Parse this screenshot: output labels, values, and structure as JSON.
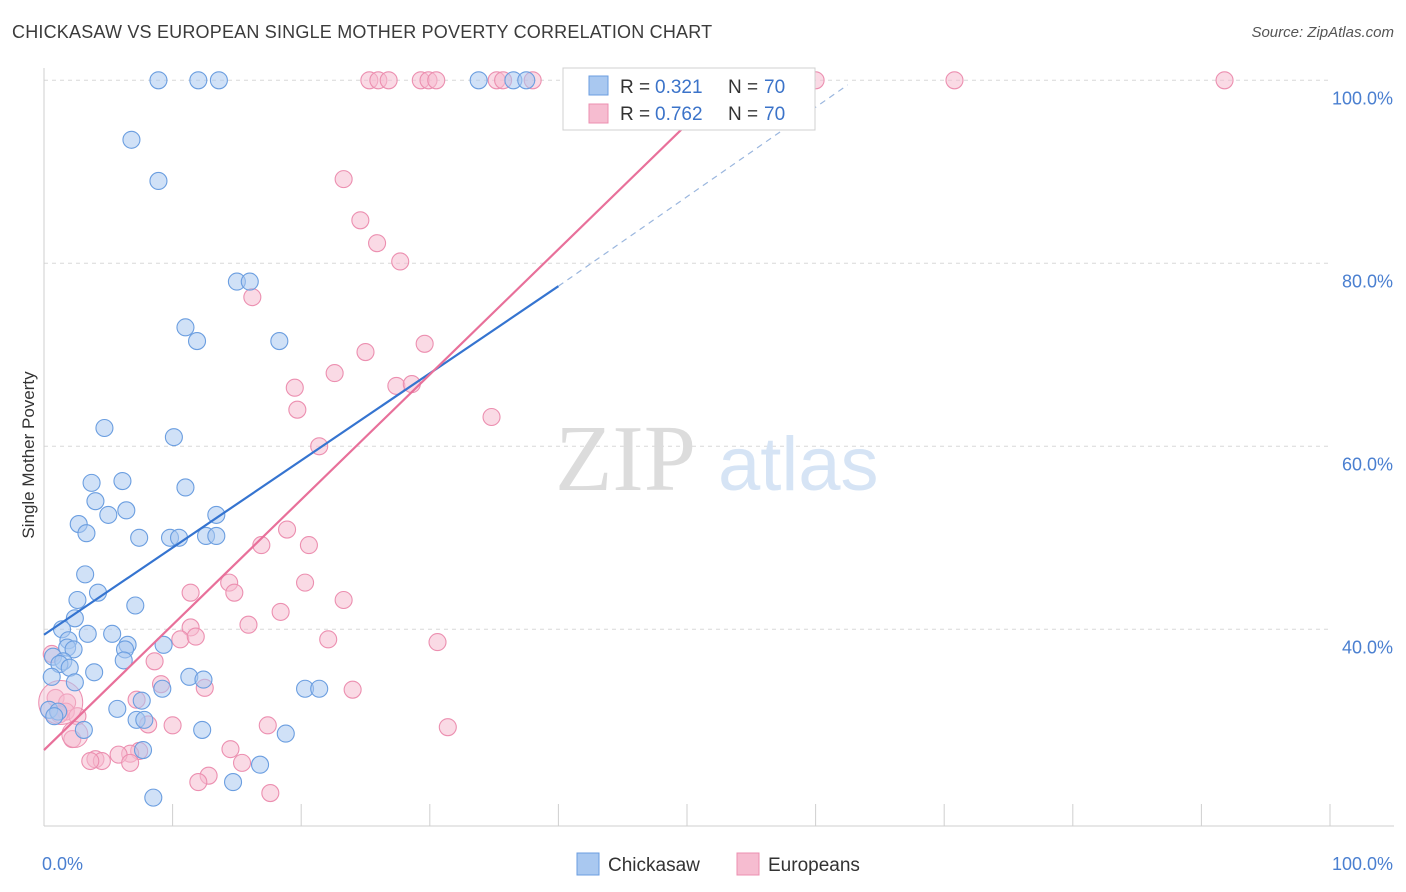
{
  "title": "CHICKASAW VS EUROPEAN SINGLE MOTHER POVERTY CORRELATION CHART",
  "source": "Source: ZipAtlas.com",
  "watermark": {
    "zip": "ZIP",
    "atlas": "atlas"
  },
  "colors": {
    "chickasaw_fill": "#a9c8f0",
    "chickasaw_stroke": "#6b9ee0",
    "chickasaw_line": "#3574d0",
    "europeans_fill": "#f6bcd0",
    "europeans_stroke": "#ec8fb0",
    "europeans_line": "#e8709a",
    "axis_text": "#4a7fd0",
    "grid": "#d8d8d8"
  },
  "legend_box": {
    "rows": [
      {
        "r_label": "R =",
        "r_value": "0.321",
        "n_label": "N =",
        "n_value": "70"
      },
      {
        "r_label": "R =",
        "r_value": "0.762",
        "n_label": "N =",
        "n_value": "70"
      }
    ]
  },
  "chart_data": {
    "type": "scatter",
    "title": "CHICKASAW VS EUROPEAN SINGLE MOTHER POVERTY CORRELATION CHART",
    "xlabel": "",
    "ylabel": "Single Mother Poverty",
    "xlim": [
      0,
      100
    ],
    "ylim": [
      18.5,
      102
    ],
    "x_tick_labels": [
      {
        "value": 0,
        "label": "0.0%"
      },
      {
        "value": 100,
        "label": "100.0%"
      }
    ],
    "y_tick_labels": [
      {
        "value": 40,
        "label": "40.0%"
      },
      {
        "value": 60,
        "label": "60.0%"
      },
      {
        "value": 80,
        "label": "80.0%"
      },
      {
        "value": 100,
        "label": "100.0%"
      }
    ],
    "y_gridlines": [
      40,
      60,
      80,
      100
    ],
    "legend_position": "bottom-center",
    "series": [
      {
        "name": "Chickasaw",
        "R": 0.321,
        "N": 70,
        "trend": {
          "x0": 0,
          "y0": 39.4,
          "x1": 40,
          "y1": 77.5,
          "dash_to": [
            62.5,
            99.5
          ]
        },
        "points": [
          [
            8.9,
            100
          ],
          [
            12,
            100
          ],
          [
            13.6,
            100
          ],
          [
            33.8,
            100
          ],
          [
            36.5,
            100
          ],
          [
            37.5,
            100
          ],
          [
            6.8,
            93.5
          ],
          [
            8.9,
            89
          ],
          [
            15,
            78
          ],
          [
            16,
            78
          ],
          [
            11,
            73
          ],
          [
            11.9,
            71.5
          ],
          [
            18.3,
            71.5
          ],
          [
            4.7,
            62
          ],
          [
            10.1,
            61
          ],
          [
            3.7,
            56
          ],
          [
            6.1,
            56.2
          ],
          [
            11,
            55.5
          ],
          [
            4,
            54
          ],
          [
            6.4,
            53
          ],
          [
            5,
            52.5
          ],
          [
            13.4,
            52.5
          ],
          [
            2.7,
            51.5
          ],
          [
            3.3,
            50.5
          ],
          [
            7.4,
            50
          ],
          [
            9.8,
            50
          ],
          [
            10.5,
            50
          ],
          [
            12.6,
            50.2
          ],
          [
            13.4,
            50.2
          ],
          [
            3.2,
            46
          ],
          [
            4.2,
            44
          ],
          [
            2.6,
            43.2
          ],
          [
            7.1,
            42.6
          ],
          [
            2.4,
            41.2
          ],
          [
            1.4,
            40
          ],
          [
            3.4,
            39.5
          ],
          [
            5.3,
            39.5
          ],
          [
            1.9,
            38.8
          ],
          [
            6.5,
            38.3
          ],
          [
            9.3,
            38.3
          ],
          [
            1.8,
            38
          ],
          [
            6.3,
            37.8
          ],
          [
            2.3,
            37.8
          ],
          [
            0.7,
            37
          ],
          [
            1.5,
            36.5
          ],
          [
            1.2,
            36.2
          ],
          [
            6.2,
            36.6
          ],
          [
            2,
            35.8
          ],
          [
            3.9,
            35.3
          ],
          [
            11.3,
            34.8
          ],
          [
            12.4,
            34.5
          ],
          [
            0.6,
            34.8
          ],
          [
            2.4,
            34.2
          ],
          [
            9.2,
            33.5
          ],
          [
            20.3,
            33.5
          ],
          [
            21.4,
            33.5
          ],
          [
            0.4,
            31.2
          ],
          [
            1.1,
            31
          ],
          [
            5.7,
            31.3
          ],
          [
            7.6,
            32.2
          ],
          [
            0.8,
            30.5
          ],
          [
            7.2,
            30.1
          ],
          [
            7.8,
            30.1
          ],
          [
            3.1,
            29
          ],
          [
            12.3,
            29
          ],
          [
            18.8,
            28.6
          ],
          [
            7.7,
            26.8
          ],
          [
            16.8,
            25.2
          ],
          [
            14.7,
            23.3
          ],
          [
            8.5,
            21.6
          ]
        ]
      },
      {
        "name": "Europeans",
        "R": 0.762,
        "N": 70,
        "trend": {
          "x0": 0,
          "y0": 26.8,
          "x1": 53.5,
          "y1": 100
        },
        "points": [
          [
            25.3,
            100
          ],
          [
            26,
            100
          ],
          [
            26.8,
            100
          ],
          [
            29.3,
            100
          ],
          [
            29.9,
            100
          ],
          [
            30.5,
            100
          ],
          [
            35.2,
            100
          ],
          [
            35.7,
            100
          ],
          [
            38,
            100
          ],
          [
            42.6,
            100
          ],
          [
            60,
            100
          ],
          [
            70.8,
            100
          ],
          [
            91.8,
            100
          ],
          [
            23.3,
            89.2
          ],
          [
            24.6,
            84.7
          ],
          [
            25.9,
            82.2
          ],
          [
            27.7,
            80.2
          ],
          [
            16.2,
            76.3
          ],
          [
            29.6,
            71.2
          ],
          [
            25,
            70.3
          ],
          [
            22.6,
            68
          ],
          [
            27.4,
            66.6
          ],
          [
            28.6,
            66.8
          ],
          [
            19.5,
            66.4
          ],
          [
            19.7,
            64
          ],
          [
            34.8,
            63.2
          ],
          [
            21.4,
            60
          ],
          [
            18.9,
            50.9
          ],
          [
            16.9,
            49.2
          ],
          [
            20.6,
            49.2
          ],
          [
            14.4,
            45.1
          ],
          [
            20.3,
            45.1
          ],
          [
            11.4,
            44
          ],
          [
            14.8,
            44
          ],
          [
            23.3,
            43.2
          ],
          [
            18.4,
            41.9
          ],
          [
            15.9,
            40.5
          ],
          [
            11.4,
            40.2
          ],
          [
            22.1,
            38.9
          ],
          [
            10.6,
            38.9
          ],
          [
            30.6,
            38.6
          ],
          [
            11.8,
            39.2
          ],
          [
            0.6,
            37.3
          ],
          [
            8.6,
            36.5
          ],
          [
            9.1,
            34
          ],
          [
            12.5,
            33.6
          ],
          [
            0.9,
            32.5
          ],
          [
            1.8,
            32
          ],
          [
            24,
            33.4
          ],
          [
            7.2,
            32.3
          ],
          [
            1.7,
            31
          ],
          [
            1.2,
            30.7
          ],
          [
            2.6,
            30.5
          ],
          [
            8.1,
            29.6
          ],
          [
            10,
            29.5
          ],
          [
            17.4,
            29.5
          ],
          [
            31.4,
            29.3
          ],
          [
            2.2,
            28
          ],
          [
            14.5,
            26.9
          ],
          [
            7.4,
            26.7
          ],
          [
            6.7,
            26.4
          ],
          [
            5.8,
            26.3
          ],
          [
            4,
            25.8
          ],
          [
            4.5,
            25.6
          ],
          [
            3.6,
            25.6
          ],
          [
            6.7,
            25.4
          ],
          [
            15.4,
            25.4
          ],
          [
            12.8,
            24
          ],
          [
            12,
            23.3
          ],
          [
            17.6,
            22.1
          ]
        ]
      }
    ]
  },
  "bottom_legend": [
    "Chickasaw",
    "Europeans"
  ]
}
